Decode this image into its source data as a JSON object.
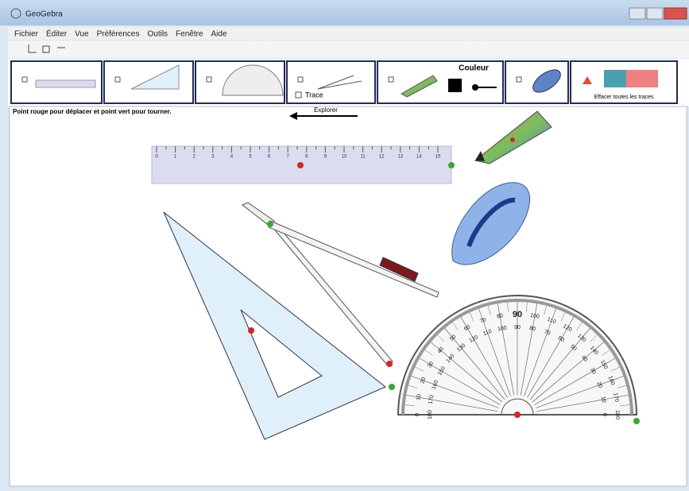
{
  "window": {
    "title": "GeoGebra"
  },
  "menu": [
    "Fichier",
    "Éditer",
    "Vue",
    "Préférences",
    "Outils",
    "Fenêtre",
    "Aide"
  ],
  "tools": {
    "color_label": "Couleur",
    "trace_label": "Trace",
    "erase_label": "Effacer toutes les traces",
    "explore_label": "Explorer"
  },
  "instruction": "Point rouge pour déplacer et point vert pour tourner.",
  "ruler": {
    "labels": [
      0,
      1,
      2,
      3,
      4,
      5,
      6,
      7,
      8,
      9,
      10,
      11,
      12,
      13,
      14,
      15
    ]
  },
  "protractor": {
    "outer": [
      0,
      10,
      20,
      30,
      40,
      50,
      60,
      70,
      80,
      90,
      100,
      110,
      120,
      130,
      140,
      150,
      160,
      170,
      180
    ],
    "inner": [
      180,
      170,
      160,
      150,
      140,
      130,
      120,
      110,
      100,
      90,
      80,
      70,
      60,
      50,
      40,
      30,
      20,
      10,
      0
    ]
  }
}
